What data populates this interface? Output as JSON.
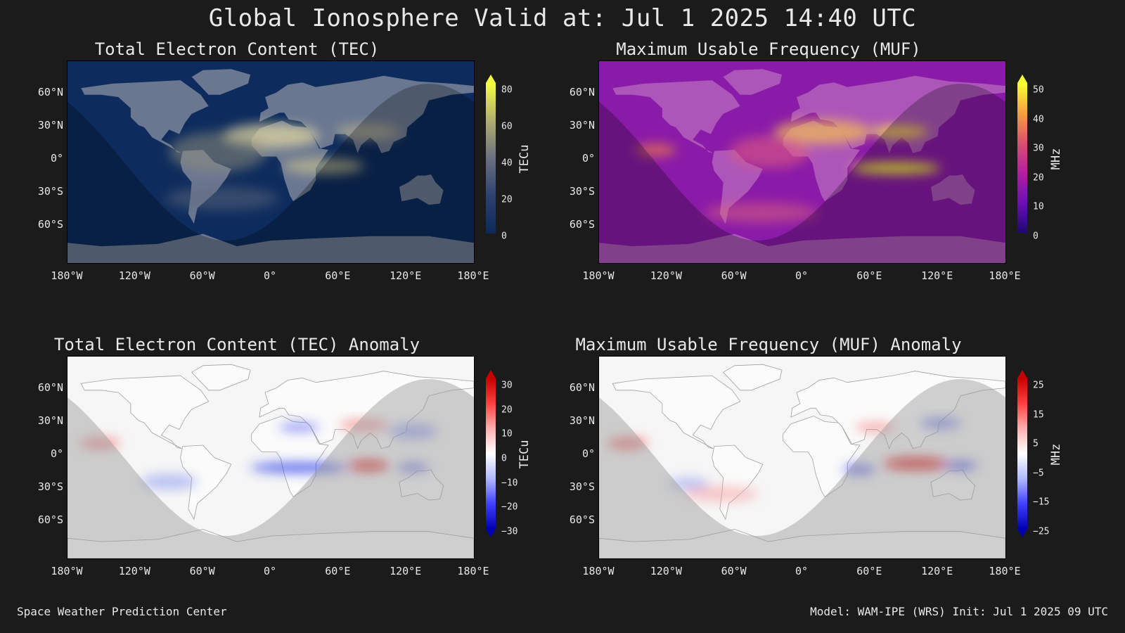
{
  "title": "Global Ionosphere Valid at: Jul 1 2025 14:40 UTC",
  "lat_labels": [
    "60°N",
    "30°N",
    "0°",
    "30°S",
    "60°S"
  ],
  "lon_labels": [
    "180°W",
    "120°W",
    "60°W",
    "0°",
    "60°E",
    "120°E",
    "180°E"
  ],
  "panels": [
    {
      "title": "Total Electron Content (TEC)",
      "colorbar": {
        "label": "TECu",
        "ticks": [
          "80",
          "60",
          "40",
          "20",
          "0"
        ],
        "colors": [
          "#f5ff40",
          "#b0ad70",
          "#6b7080",
          "#2c4170",
          "#0a2a5a"
        ]
      },
      "background": "#0d2b5c",
      "land": "#8a92a3"
    },
    {
      "title": "Maximum Usable Frequency (MUF)",
      "colorbar": {
        "label": "MHz",
        "ticks": [
          "50",
          "40",
          "30",
          "20",
          "10",
          "0"
        ],
        "colors": [
          "#f8ff30",
          "#f5a040",
          "#d85070",
          "#b020a0",
          "#6a10b0",
          "#1a0870"
        ]
      },
      "background": "#8a1aa8",
      "land": "#b86bbf"
    },
    {
      "title": "Total Electron Content (TEC) Anomaly",
      "colorbar": {
        "label": "TECu",
        "ticks": [
          "30",
          "20",
          "10",
          "0",
          "−10",
          "−20",
          "−30"
        ],
        "colors": [
          "#c80000",
          "#ff4040",
          "#ffb0b0",
          "#ffffff",
          "#b0b8ff",
          "#4040ff",
          "#0000b0"
        ]
      },
      "background": "#f6f6f6",
      "land": "#ffffff"
    },
    {
      "title": "Maximum Usable Frequency (MUF) Anomaly",
      "colorbar": {
        "label": "MHz",
        "ticks": [
          "25",
          "15",
          "5",
          "−5",
          "−15",
          "−25"
        ],
        "colors": [
          "#c80000",
          "#ff4040",
          "#ffb0b0",
          "#ffffff",
          "#b0b8ff",
          "#4040ff",
          "#0000b0"
        ]
      },
      "background": "#f6f6f6",
      "land": "#ffffff"
    }
  ],
  "footer_left": "Space Weather Prediction Center",
  "footer_right": "Model: WAM-IPE (WRS) Init: Jul 1 2025 09 UTC"
}
